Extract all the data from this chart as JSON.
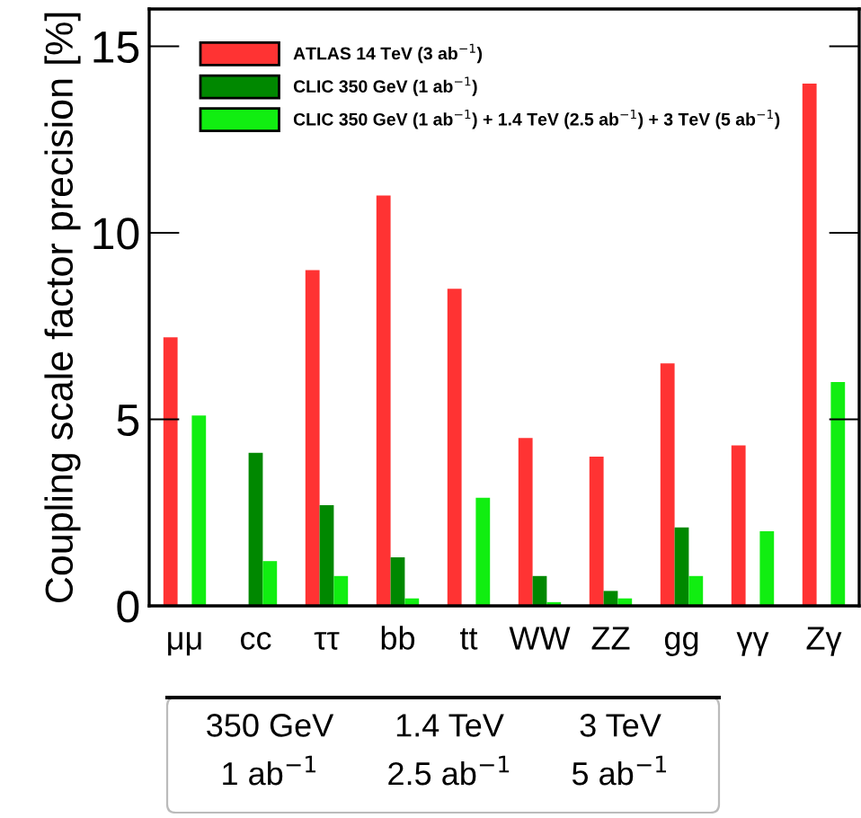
{
  "chart_data": {
    "type": "bar",
    "ylabel": "Coupling scale factor precision [%]",
    "categories": [
      "μμ",
      "cc",
      "ττ",
      "bb",
      "tt",
      "WW",
      "ZZ",
      "gg",
      "γγ",
      "Zγ"
    ],
    "series": [
      {
        "name": "ATLAS 14 TeV (3 ab$^{−1}$)",
        "color": "#ff3333",
        "values": [
          7.2,
          null,
          9.0,
          11.0,
          8.5,
          4.5,
          4.0,
          6.5,
          4.3,
          14.0
        ]
      },
      {
        "name": "CLIC 350 GeV (1 ab$^{−1}$)",
        "color": "#008800",
        "values": [
          0,
          4.1,
          2.7,
          1.3,
          0,
          0.8,
          0.4,
          2.1,
          0,
          0
        ]
      },
      {
        "name": "CLIC 350 GeV (1 ab$^{−1}$) + 1.4 TeV (2.5 ab$^{−1}$) + 3 TeV (5 ab$^{−1}$)",
        "color": "#11ee11",
        "values": [
          5.1,
          1.2,
          0.8,
          0.2,
          2.9,
          0.1,
          0.2,
          0.8,
          2.0,
          6.0
        ]
      }
    ],
    "ylim": [
      0,
      16
    ],
    "yticks": [
      0,
      5,
      10,
      15
    ],
    "annotations": [
      "350 GeV",
      "1 ab$^{−1}$",
      "1.4 TeV",
      "2.5 ab$^{−1}$",
      "3 TeV",
      "5 ab$^{−1}$"
    ],
    "legend": "top left",
    "grid": false
  }
}
